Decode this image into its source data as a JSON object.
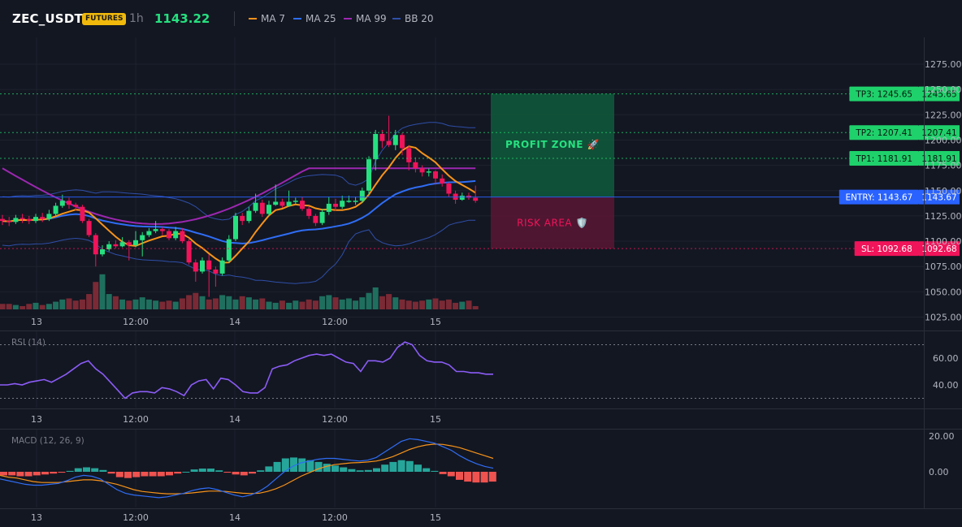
{
  "header": {
    "symbol": "ZEC_USDT",
    "badge": "FUTURES",
    "timeframe": "1h",
    "price": "1143.22",
    "legend": [
      {
        "label": "MA 7",
        "color": "#f7931a"
      },
      {
        "label": "MA 25",
        "color": "#2f6df5"
      },
      {
        "label": "MA 99",
        "color": "#9c27b0"
      },
      {
        "label": "BB 20",
        "color": "#2f4fa8"
      }
    ]
  },
  "levels": [
    {
      "name": "tp3",
      "label": "TP3: 1245.65",
      "axis_label": "1245.65",
      "value": 1245.65,
      "color": "#1fd16b"
    },
    {
      "name": "tp2",
      "label": "TP2: 1207.41",
      "axis_label": "1207.41",
      "value": 1207.41,
      "color": "#1fd16b"
    },
    {
      "name": "tp1",
      "label": "TP1: 1181.91",
      "axis_label": "1181.91",
      "value": 1181.91,
      "color": "#1fd16b"
    },
    {
      "name": "entry",
      "label": "ENTRY: 1143.67",
      "axis_label": "1143.67",
      "value": 1143.67,
      "color": "#2962ff"
    },
    {
      "name": "sl",
      "label": "SL: 1092.68",
      "axis_label": "1092.68",
      "value": 1092.68,
      "color": "#f0145a"
    }
  ],
  "zones": {
    "profit_label": "PROFIT ZONE 🚀",
    "risk_label": "RISK AREA 🛡️"
  },
  "price_axis": {
    "ticks": [
      1275,
      1250,
      1225,
      1200,
      1175,
      1150,
      1125,
      1100,
      1075,
      1050,
      1025
    ],
    "tick_labels": [
      "1275.00",
      "1250.00",
      "1225.00",
      "1200.00",
      "1175.00",
      "1150.00",
      "1125.00",
      "1100.00",
      "1075.00",
      "1050.00",
      "1025.00"
    ]
  },
  "time_axis": {
    "labels": [
      {
        "text": "13",
        "index": 3
      },
      {
        "text": "12:00",
        "index": 15
      },
      {
        "text": "14",
        "index": 27
      },
      {
        "text": "12:00",
        "index": 39
      },
      {
        "text": "15",
        "index": 51
      }
    ]
  },
  "rsi": {
    "title": "RSI (14)",
    "tick_labels": [
      "60.00",
      "40.00"
    ],
    "ticks": [
      60,
      40
    ],
    "levels": [
      70,
      30
    ],
    "values": [
      40,
      40,
      41,
      40,
      42,
      43,
      44,
      42,
      45,
      48,
      52,
      56,
      58,
      52,
      48,
      42,
      36,
      30,
      34,
      35,
      35,
      34,
      38,
      37,
      35,
      32,
      40,
      43,
      44,
      37,
      45,
      44,
      40,
      35,
      34,
      34,
      38,
      52,
      54,
      55,
      58,
      60,
      62,
      63,
      62,
      63,
      60,
      57,
      56,
      50,
      58,
      58,
      57,
      60,
      68,
      72,
      70,
      62,
      58,
      57,
      57,
      55,
      50,
      50,
      49,
      49,
      48,
      48
    ]
  },
  "macd": {
    "title": "MACD (12, 26, 9)",
    "tick_labels": [
      "20.00",
      "0.00"
    ],
    "ticks": [
      20,
      0
    ],
    "macd_line": [
      -4,
      -5,
      -6,
      -7,
      -7.5,
      -7.5,
      -7,
      -6.5,
      -5,
      -3,
      -2,
      -2.5,
      -4,
      -7,
      -10,
      -12,
      -13,
      -13.5,
      -14,
      -14.5,
      -14,
      -13,
      -12,
      -10.5,
      -9.5,
      -9,
      -10,
      -11.5,
      -13,
      -14,
      -13,
      -11,
      -8,
      -4,
      0,
      3,
      5,
      6,
      7,
      7.5,
      7.5,
      7,
      6.5,
      6,
      6.5,
      8,
      11,
      14,
      17,
      18.5,
      18,
      17,
      16,
      14,
      12,
      9,
      6.5,
      4.5,
      3,
      2
    ],
    "signal_line": [
      -2,
      -3,
      -3.5,
      -4.5,
      -5.5,
      -6,
      -6,
      -6,
      -5.5,
      -5,
      -4.5,
      -4.5,
      -5,
      -6,
      -7,
      -8.5,
      -10,
      -11,
      -11.5,
      -12,
      -12.3,
      -12.3,
      -12.2,
      -11.8,
      -11.3,
      -10.8,
      -10.8,
      -11,
      -11.5,
      -12,
      -12.2,
      -12,
      -11,
      -9.5,
      -7.5,
      -5,
      -2.5,
      -0.5,
      1.5,
      3,
      4,
      4.5,
      5,
      5.2,
      5.5,
      6,
      7,
      8.5,
      10.5,
      12.5,
      14,
      15,
      15.5,
      15.3,
      14.5,
      13.5,
      12,
      10.5,
      9,
      7.5
    ],
    "histogram": [
      -2,
      -2,
      -2.5,
      -2.5,
      -2,
      -1.5,
      -1,
      -0.5,
      0.5,
      2,
      2.5,
      2,
      1,
      -1,
      -3,
      -3.5,
      -3,
      -2.5,
      -2.5,
      -2.5,
      -2,
      -1,
      0,
      1.3,
      1.8,
      1.8,
      0.8,
      -0.5,
      -1.5,
      -2,
      -1,
      0.8,
      3,
      5.5,
      7.5,
      8,
      7.5,
      6.5,
      5.5,
      4.5,
      3.5,
      2.5,
      1.5,
      0.8,
      1,
      2,
      4,
      5.5,
      6.5,
      6,
      4,
      2,
      0.5,
      -1.3,
      -2.5,
      -4.5,
      -5.5,
      -6,
      -6,
      -5.5
    ]
  },
  "candles": [
    [
      1122,
      1120,
      1126,
      1116
    ],
    [
      1120,
      1119,
      1124,
      1115
    ],
    [
      1119,
      1123,
      1126,
      1117
    ],
    [
      1123,
      1122,
      1127,
      1118
    ],
    [
      1122,
      1120,
      1125,
      1117
    ],
    [
      1120,
      1124,
      1127,
      1118
    ],
    [
      1124,
      1122,
      1128,
      1119
    ],
    [
      1122,
      1127,
      1131,
      1120
    ],
    [
      1127,
      1135,
      1138,
      1125
    ],
    [
      1135,
      1140,
      1146,
      1133
    ],
    [
      1140,
      1136,
      1143,
      1132
    ],
    [
      1136,
      1134,
      1138,
      1130
    ],
    [
      1134,
      1120,
      1136,
      1118
    ],
    [
      1120,
      1106,
      1122,
      1104
    ],
    [
      1106,
      1087,
      1108,
      1075
    ],
    [
      1087,
      1092,
      1096,
      1085
    ],
    [
      1092,
      1097,
      1100,
      1090
    ],
    [
      1097,
      1095,
      1101,
      1093
    ],
    [
      1095,
      1099,
      1104,
      1094
    ],
    [
      1099,
      1096,
      1101,
      1081
    ],
    [
      1096,
      1101,
      1110,
      1094
    ],
    [
      1101,
      1106,
      1109,
      1085
    ],
    [
      1106,
      1110,
      1113,
      1104
    ],
    [
      1110,
      1112,
      1120,
      1108
    ],
    [
      1112,
      1110,
      1114,
      1106
    ],
    [
      1110,
      1103,
      1112,
      1101
    ],
    [
      1103,
      1110,
      1114,
      1101
    ],
    [
      1110,
      1100,
      1113,
      1098
    ],
    [
      1100,
      1079,
      1102,
      1077
    ],
    [
      1079,
      1070,
      1082,
      1060
    ],
    [
      1070,
      1081,
      1084,
      1068
    ],
    [
      1081,
      1072,
      1087,
      1045
    ],
    [
      1072,
      1068,
      1075,
      1055
    ],
    [
      1068,
      1081,
      1084,
      1066
    ],
    [
      1081,
      1102,
      1106,
      1079
    ],
    [
      1102,
      1125,
      1128,
      1100
    ],
    [
      1125,
      1120,
      1128,
      1116
    ],
    [
      1120,
      1130,
      1134,
      1118
    ],
    [
      1130,
      1138,
      1147,
      1128
    ],
    [
      1138,
      1127,
      1141,
      1124
    ],
    [
      1127,
      1136,
      1140,
      1125
    ],
    [
      1136,
      1139,
      1156,
      1135
    ],
    [
      1139,
      1135,
      1142,
      1133
    ],
    [
      1135,
      1139,
      1150,
      1134
    ],
    [
      1139,
      1140,
      1143,
      1136
    ],
    [
      1140,
      1132,
      1144,
      1130
    ],
    [
      1132,
      1125,
      1135,
      1122
    ],
    [
      1125,
      1118,
      1127,
      1115
    ],
    [
      1118,
      1129,
      1132,
      1116
    ],
    [
      1129,
      1137,
      1144,
      1126
    ],
    [
      1137,
      1134,
      1142,
      1130
    ],
    [
      1134,
      1140,
      1145,
      1132
    ],
    [
      1140,
      1140,
      1145,
      1138
    ],
    [
      1140,
      1140,
      1144,
      1136
    ],
    [
      1140,
      1150,
      1153,
      1138
    ],
    [
      1150,
      1181,
      1184,
      1146
    ],
    [
      1181,
      1206,
      1210,
      1170
    ],
    [
      1206,
      1199,
      1210,
      1192
    ],
    [
      1199,
      1195,
      1224,
      1193
    ],
    [
      1195,
      1205,
      1210,
      1190
    ],
    [
      1205,
      1192,
      1207,
      1185
    ],
    [
      1192,
      1178,
      1195,
      1170
    ],
    [
      1178,
      1172,
      1183,
      1168
    ],
    [
      1172,
      1168,
      1175,
      1164
    ],
    [
      1168,
      1169,
      1172,
      1164
    ],
    [
      1169,
      1162,
      1170,
      1156
    ],
    [
      1162,
      1157,
      1166,
      1154
    ],
    [
      1157,
      1147,
      1158,
      1144
    ],
    [
      1147,
      1141,
      1150,
      1137
    ],
    [
      1141,
      1145,
      1148,
      1140
    ],
    [
      1145,
      1143,
      1148,
      1141
    ],
    [
      1143,
      1140,
      1155,
      1138
    ]
  ],
  "volumes": [
    5,
    5,
    4,
    3,
    5,
    6,
    4,
    5,
    7,
    9,
    10,
    8,
    9,
    14,
    25,
    32,
    14,
    12,
    9,
    8,
    9,
    11,
    9,
    8,
    7,
    8,
    7,
    10,
    13,
    15,
    12,
    9,
    10,
    13,
    12,
    9,
    12,
    11,
    9,
    10,
    7,
    6,
    8,
    6,
    8,
    7,
    9,
    8,
    12,
    13,
    11,
    9,
    10,
    8,
    11,
    15,
    20,
    12,
    14,
    11,
    9,
    8,
    7,
    8,
    9,
    10,
    8,
    9,
    6,
    7,
    8,
    3
  ]
}
